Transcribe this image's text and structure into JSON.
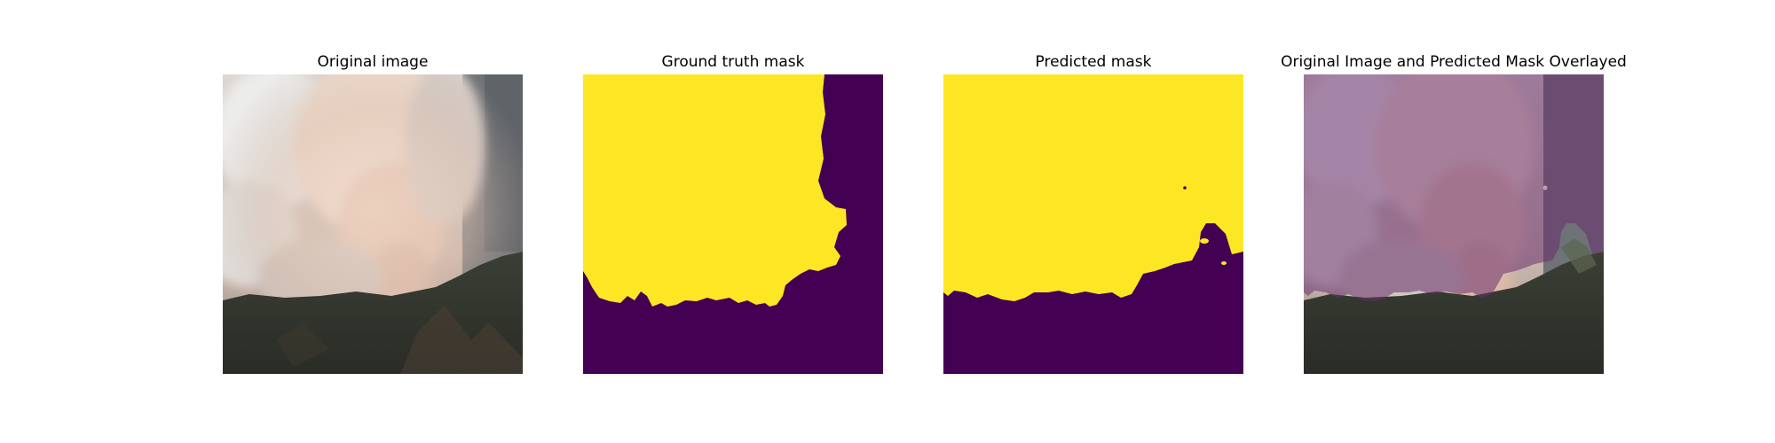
{
  "figure": {
    "panels": [
      {
        "id": "original",
        "title": "Original image"
      },
      {
        "id": "ground-truth",
        "title": "Ground truth mask"
      },
      {
        "id": "predicted",
        "title": "Predicted mask"
      },
      {
        "id": "overlay",
        "title": "Original Image and Predicted Mask Overlayed"
      }
    ],
    "colors": {
      "mask_foreground": "#fde725",
      "mask_background": "#440154",
      "smoke_light": "#f0e6dc",
      "smoke_pink": "#e6c7b6",
      "forest_dark": "#2f342c",
      "overlay_tint": "#7a4b75"
    }
  }
}
